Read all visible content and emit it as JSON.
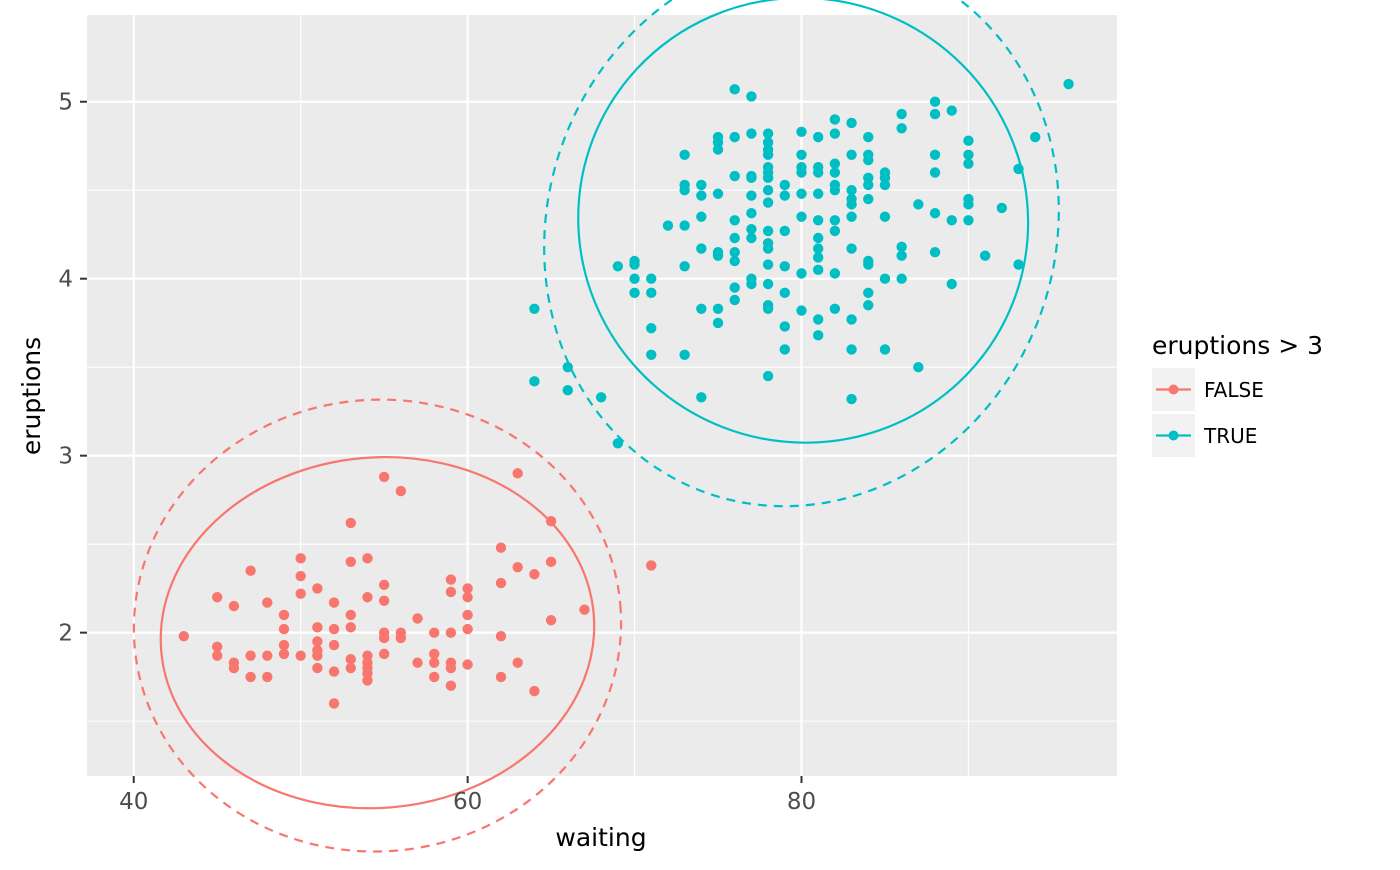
{
  "chart_data": {
    "type": "scatter",
    "xlabel": "waiting",
    "ylabel": "eruptions",
    "xlim": [
      37.2,
      98.9
    ],
    "ylim": [
      1.19,
      5.49
    ],
    "x_ticks": [
      40,
      60,
      80
    ],
    "y_ticks": [
      2,
      3,
      4,
      5
    ],
    "x_minor_ticks": [
      50,
      70,
      90
    ],
    "y_minor_ticks": [
      1.5,
      2.5,
      3.5,
      4.5
    ],
    "grid": true,
    "panel_background": "#ebebeb",
    "legend": {
      "title": "eruptions > 3",
      "position": "right",
      "items": [
        {
          "label": "FALSE",
          "color": "#f8766d"
        },
        {
          "label": "TRUE",
          "color": "#00bfc4"
        }
      ]
    },
    "series": [
      {
        "name": "FALSE",
        "color": "#f8766d",
        "points": [
          [
            43,
            1.98
          ],
          [
            45,
            1.87
          ],
          [
            45,
            1.92
          ],
          [
            45,
            2.2
          ],
          [
            46,
            1.8
          ],
          [
            46,
            1.83
          ],
          [
            46,
            2.15
          ],
          [
            47,
            1.75
          ],
          [
            47,
            1.87
          ],
          [
            47,
            2.35
          ],
          [
            48,
            1.75
          ],
          [
            48,
            1.87
          ],
          [
            48,
            2.17
          ],
          [
            49,
            1.88
          ],
          [
            49,
            1.93
          ],
          [
            49,
            2.02
          ],
          [
            49,
            2.1
          ],
          [
            50,
            1.87
          ],
          [
            50,
            2.22
          ],
          [
            50,
            2.32
          ],
          [
            50,
            2.42
          ],
          [
            51,
            1.8
          ],
          [
            51,
            1.87
          ],
          [
            51,
            1.9
          ],
          [
            51,
            1.95
          ],
          [
            51,
            2.03
          ],
          [
            51,
            2.25
          ],
          [
            52,
            1.6
          ],
          [
            52,
            1.78
          ],
          [
            52,
            1.93
          ],
          [
            52,
            2.02
          ],
          [
            52,
            2.17
          ],
          [
            53,
            1.8
          ],
          [
            53,
            1.85
          ],
          [
            53,
            2.03
          ],
          [
            53,
            2.1
          ],
          [
            53,
            2.4
          ],
          [
            53,
            2.62
          ],
          [
            54,
            1.73
          ],
          [
            54,
            1.77
          ],
          [
            54,
            1.8
          ],
          [
            54,
            1.83
          ],
          [
            54,
            1.87
          ],
          [
            54,
            2.2
          ],
          [
            54,
            2.42
          ],
          [
            55,
            1.88
          ],
          [
            55,
            1.97
          ],
          [
            55,
            2.0
          ],
          [
            55,
            2.18
          ],
          [
            55,
            2.27
          ],
          [
            55,
            2.88
          ],
          [
            56,
            1.97
          ],
          [
            56,
            2.0
          ],
          [
            56,
            2.8
          ],
          [
            57,
            1.83
          ],
          [
            57,
            2.08
          ],
          [
            58,
            1.75
          ],
          [
            58,
            1.83
          ],
          [
            58,
            1.88
          ],
          [
            58,
            2.0
          ],
          [
            59,
            1.7
          ],
          [
            59,
            1.8
          ],
          [
            59,
            1.83
          ],
          [
            59,
            2.0
          ],
          [
            59,
            2.23
          ],
          [
            59,
            2.3
          ],
          [
            60,
            1.82
          ],
          [
            60,
            2.02
          ],
          [
            60,
            2.1
          ],
          [
            60,
            2.2
          ],
          [
            60,
            2.25
          ],
          [
            62,
            1.75
          ],
          [
            62,
            1.98
          ],
          [
            62,
            2.28
          ],
          [
            62,
            2.48
          ],
          [
            63,
            1.83
          ],
          [
            63,
            2.37
          ],
          [
            63,
            2.9
          ],
          [
            64,
            1.67
          ],
          [
            64,
            2.33
          ],
          [
            65,
            2.07
          ],
          [
            65,
            2.4
          ],
          [
            65,
            2.63
          ],
          [
            67,
            2.13
          ],
          [
            71,
            2.38
          ]
        ],
        "ellipse_solid": {
          "cx": 54.6,
          "cy": 2.0,
          "a_data": 13.0,
          "b_data": 0.45,
          "angle_deg": -5
        },
        "ellipse_dashed": {
          "cx": 54.6,
          "cy": 2.04,
          "a_data": 14.6,
          "b_data": 0.58,
          "angle_deg": -5
        }
      },
      {
        "name": "TRUE",
        "color": "#00bfc4",
        "points": [
          [
            64,
            3.42
          ],
          [
            64,
            3.83
          ],
          [
            66,
            3.37
          ],
          [
            66,
            3.5
          ],
          [
            68,
            3.33
          ],
          [
            69,
            3.07
          ],
          [
            69,
            4.07
          ],
          [
            70,
            3.92
          ],
          [
            70,
            4.0
          ],
          [
            70,
            4.08
          ],
          [
            70,
            4.1
          ],
          [
            71,
            3.57
          ],
          [
            71,
            3.72
          ],
          [
            71,
            3.92
          ],
          [
            71,
            4.0
          ],
          [
            72,
            4.3
          ],
          [
            73,
            3.57
          ],
          [
            73,
            4.07
          ],
          [
            73,
            4.3
          ],
          [
            73,
            4.5
          ],
          [
            73,
            4.53
          ],
          [
            73,
            4.7
          ],
          [
            74,
            3.33
          ],
          [
            74,
            3.83
          ],
          [
            74,
            4.17
          ],
          [
            74,
            4.35
          ],
          [
            74,
            4.47
          ],
          [
            74,
            4.53
          ],
          [
            75,
            3.75
          ],
          [
            75,
            3.83
          ],
          [
            75,
            4.13
          ],
          [
            75,
            4.15
          ],
          [
            75,
            4.48
          ],
          [
            75,
            4.73
          ],
          [
            75,
            4.77
          ],
          [
            75,
            4.8
          ],
          [
            76,
            3.88
          ],
          [
            76,
            3.95
          ],
          [
            76,
            4.1
          ],
          [
            76,
            4.15
          ],
          [
            76,
            4.23
          ],
          [
            76,
            4.33
          ],
          [
            76,
            4.58
          ],
          [
            76,
            4.8
          ],
          [
            76,
            5.07
          ],
          [
            77,
            3.97
          ],
          [
            77,
            4.0
          ],
          [
            77,
            4.23
          ],
          [
            77,
            4.28
          ],
          [
            77,
            4.37
          ],
          [
            77,
            4.47
          ],
          [
            77,
            4.57
          ],
          [
            77,
            4.58
          ],
          [
            77,
            4.82
          ],
          [
            77,
            5.03
          ],
          [
            78,
            3.45
          ],
          [
            78,
            3.83
          ],
          [
            78,
            3.85
          ],
          [
            78,
            3.97
          ],
          [
            78,
            4.08
          ],
          [
            78,
            4.17
          ],
          [
            78,
            4.2
          ],
          [
            78,
            4.27
          ],
          [
            78,
            4.43
          ],
          [
            78,
            4.5
          ],
          [
            78,
            4.57
          ],
          [
            78,
            4.6
          ],
          [
            78,
            4.63
          ],
          [
            78,
            4.7
          ],
          [
            78,
            4.73
          ],
          [
            78,
            4.77
          ],
          [
            78,
            4.82
          ],
          [
            79,
            3.6
          ],
          [
            79,
            3.73
          ],
          [
            79,
            3.92
          ],
          [
            79,
            4.07
          ],
          [
            79,
            4.27
          ],
          [
            79,
            4.47
          ],
          [
            79,
            4.53
          ],
          [
            80,
            3.82
          ],
          [
            80,
            4.03
          ],
          [
            80,
            4.35
          ],
          [
            80,
            4.48
          ],
          [
            80,
            4.6
          ],
          [
            80,
            4.63
          ],
          [
            80,
            4.7
          ],
          [
            80,
            4.83
          ],
          [
            81,
            3.68
          ],
          [
            81,
            3.77
          ],
          [
            81,
            4.05
          ],
          [
            81,
            4.12
          ],
          [
            81,
            4.17
          ],
          [
            81,
            4.23
          ],
          [
            81,
            4.33
          ],
          [
            81,
            4.48
          ],
          [
            81,
            4.6
          ],
          [
            81,
            4.63
          ],
          [
            81,
            4.8
          ],
          [
            82,
            3.83
          ],
          [
            82,
            4.03
          ],
          [
            82,
            4.27
          ],
          [
            82,
            4.33
          ],
          [
            82,
            4.5
          ],
          [
            82,
            4.53
          ],
          [
            82,
            4.6
          ],
          [
            82,
            4.65
          ],
          [
            82,
            4.82
          ],
          [
            82,
            4.9
          ],
          [
            83,
            3.32
          ],
          [
            83,
            3.6
          ],
          [
            83,
            3.77
          ],
          [
            83,
            4.17
          ],
          [
            83,
            4.35
          ],
          [
            83,
            4.42
          ],
          [
            83,
            4.45
          ],
          [
            83,
            4.5
          ],
          [
            83,
            4.7
          ],
          [
            83,
            4.88
          ],
          [
            84,
            3.85
          ],
          [
            84,
            3.92
          ],
          [
            84,
            4.08
          ],
          [
            84,
            4.1
          ],
          [
            84,
            4.45
          ],
          [
            84,
            4.53
          ],
          [
            84,
            4.57
          ],
          [
            84,
            4.67
          ],
          [
            84,
            4.7
          ],
          [
            84,
            4.8
          ],
          [
            85,
            3.6
          ],
          [
            85,
            4.0
          ],
          [
            85,
            4.35
          ],
          [
            85,
            4.53
          ],
          [
            85,
            4.57
          ],
          [
            85,
            4.6
          ],
          [
            86,
            4.0
          ],
          [
            86,
            4.13
          ],
          [
            86,
            4.18
          ],
          [
            86,
            4.85
          ],
          [
            86,
            4.93
          ],
          [
            87,
            3.5
          ],
          [
            87,
            4.42
          ],
          [
            88,
            4.15
          ],
          [
            88,
            4.37
          ],
          [
            88,
            4.6
          ],
          [
            88,
            4.7
          ],
          [
            88,
            4.93
          ],
          [
            88,
            5.0
          ],
          [
            89,
            3.97
          ],
          [
            89,
            4.33
          ],
          [
            89,
            4.95
          ],
          [
            90,
            4.33
          ],
          [
            90,
            4.42
          ],
          [
            90,
            4.45
          ],
          [
            90,
            4.65
          ],
          [
            90,
            4.7
          ],
          [
            90,
            4.78
          ],
          [
            91,
            4.13
          ],
          [
            92,
            4.4
          ],
          [
            93,
            4.08
          ],
          [
            93,
            4.62
          ],
          [
            94,
            4.8
          ],
          [
            96,
            5.1
          ]
        ],
        "ellipse_solid": {
          "cx": 80.1,
          "cy": 4.33,
          "a_data": 13.5,
          "b_data": 0.57,
          "angle_deg": 21
        },
        "ellipse_dashed": {
          "cx": 80.0,
          "cy": 4.28,
          "a_data": 15.2,
          "b_data": 0.72,
          "angle_deg": 21
        }
      }
    ]
  }
}
